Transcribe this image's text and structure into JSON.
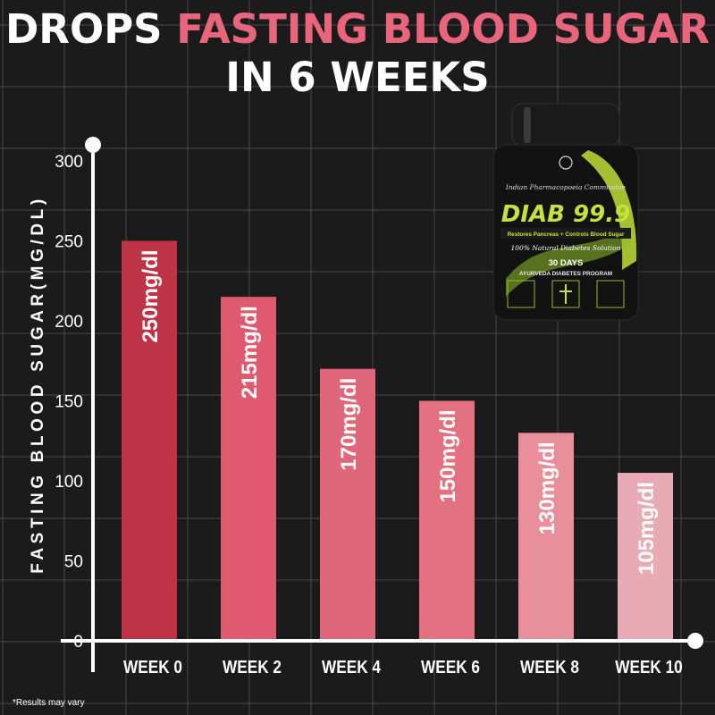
{
  "header": {
    "title_part1": "DROPS ",
    "title_part2": "FASTING BLOOD SUGAR",
    "subtitle": "IN 6 WEEKS"
  },
  "footnote": "*Results may vary",
  "product": {
    "brand": "DIAB 99.9",
    "line1": "Indian Pharmacopoeia Commission",
    "line2": "Restores Pancreas + Controls Blood Sugar",
    "line3": "100% Natural Diabetes Solution",
    "line4": "30 DAYS",
    "line5": "AYURVEDA DIABETES PROGRAM"
  },
  "colors": {
    "background": "#1c1b1b",
    "grid": "#4a4848",
    "axis": "#ffffff",
    "title_accent": "#e9657c",
    "bars": [
      "#bf3346",
      "#df5a6e",
      "#e0677a",
      "#e4717f",
      "#e88f9b",
      "#e8aab4"
    ]
  },
  "chart_data": {
    "type": "bar",
    "title": "DROPS FASTING BLOOD SUGAR IN 6 WEEKS",
    "xlabel": "",
    "ylabel": "FASTING BLOOD SUGAR(MG/DL)",
    "categories": [
      "WEEK 0",
      "WEEK 2",
      "WEEK 4",
      "WEEK 6",
      "WEEK 8",
      "WEEK 10"
    ],
    "values": [
      250,
      215,
      170,
      150,
      130,
      105
    ],
    "data_labels": [
      "250mg/dl",
      "215mg/dl",
      "170mg/dl",
      "150mg/dl",
      "130mg/dl",
      "105mg/dl"
    ],
    "yticks": [
      0,
      50,
      100,
      150,
      200,
      250,
      300
    ],
    "ylim": [
      0,
      300
    ],
    "grid": true,
    "legend": "none"
  }
}
